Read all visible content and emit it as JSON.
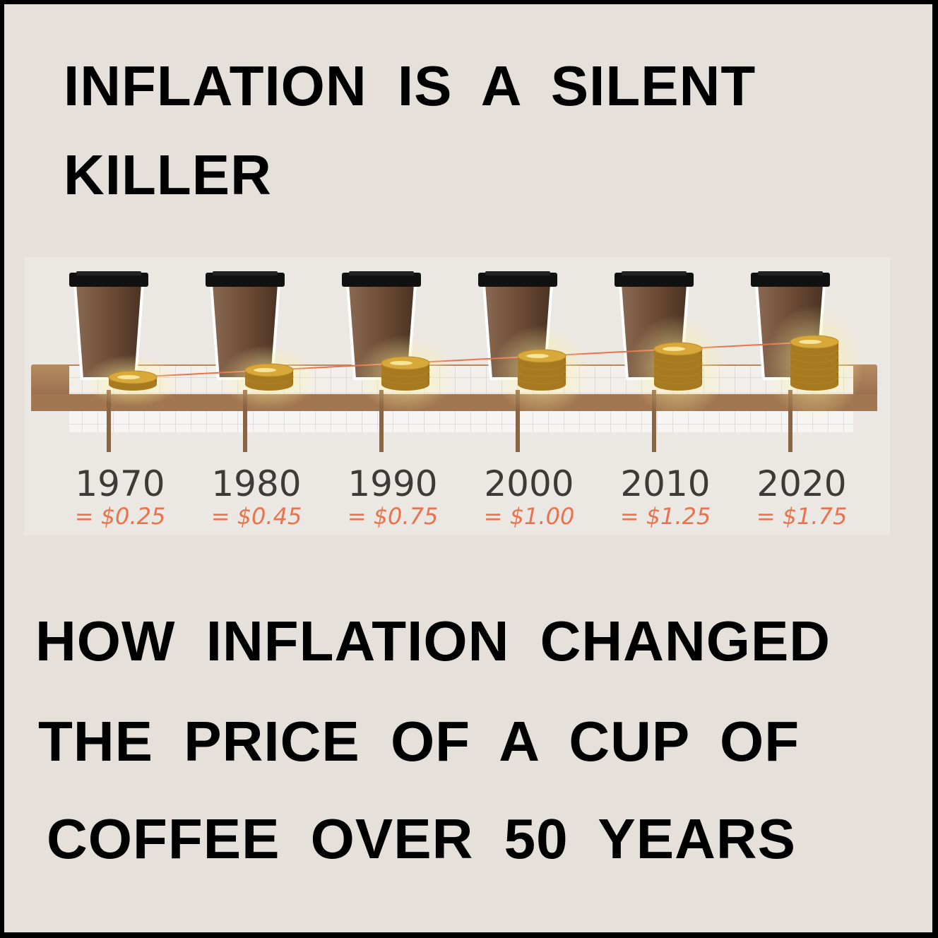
{
  "headline": {
    "line1": "INFLATION IS A SILENT",
    "line2": "KILLER"
  },
  "subheadline": {
    "line1": "HOW INFLATION CHANGED",
    "line2": "THE PRICE OF A CUP OF",
    "line3": "COFFEE OVER 50 YEARS"
  },
  "colors": {
    "background": "#e6e0db",
    "cup": "#6b4a35",
    "lid": "#111111",
    "coin": "#d9a83a",
    "trend_line": "#e8734c",
    "price_text": "#e8734c",
    "year_text": "#3d3a38",
    "shelf": "#a77c56"
  },
  "chart_data": {
    "type": "bar",
    "categories": [
      "1970",
      "1980",
      "1990",
      "2000",
      "2010",
      "2020"
    ],
    "values": [
      0.25,
      0.45,
      0.75,
      1.0,
      1.25,
      1.75
    ],
    "value_labels": [
      "= $0.25",
      "= $0.45",
      "= $0.75",
      "= $1.00",
      "= $1.25",
      "= $1.75"
    ],
    "coin_stack_counts": [
      1,
      2,
      3,
      4,
      5,
      6
    ],
    "icons": [
      "coffee-cup-icon",
      "coin-stack-icon"
    ],
    "trend_line": true,
    "grid": false,
    "legend": "none"
  }
}
